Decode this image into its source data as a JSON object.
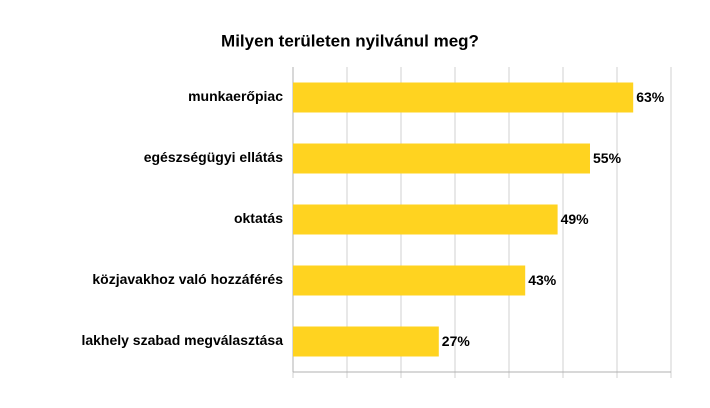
{
  "chart_data": {
    "type": "hbar",
    "title": "Milyen területen nyilvánul meg?",
    "categories": [
      "munkaerőpiac",
      "egészségügyi ellátás",
      "oktatás",
      "közjavakhoz való hozzáférés",
      "lakhely szabad megválasztása"
    ],
    "values": [
      63,
      55,
      49,
      43,
      27
    ],
    "value_labels": [
      "63%",
      "55%",
      "49%",
      "43%",
      "27%"
    ],
    "color": "#ffd320",
    "xlim": [
      0,
      70
    ],
    "xticks": [
      0,
      10,
      20,
      30,
      40,
      50,
      60,
      70
    ],
    "grid": true
  }
}
